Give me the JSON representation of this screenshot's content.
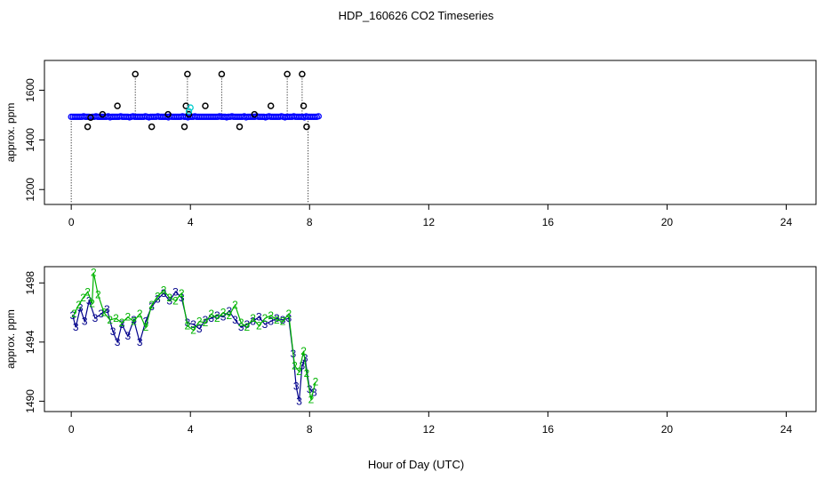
{
  "title": "HDP_160626  CO2 Timeseries",
  "xlabel": "Hour of Day (UTC)",
  "chart_data": [
    {
      "type": "scatter",
      "panel": "top",
      "ylabel": "approx. ppm",
      "xlim": [
        -0.9,
        25.0
      ],
      "ylim": [
        1140,
        1720
      ],
      "x_ticks": [
        0,
        4,
        8,
        12,
        16,
        20,
        24
      ],
      "y_ticks": [
        1200,
        1400,
        1600
      ],
      "baseline_series": {
        "x_range": [
          0.0,
          8.3
        ],
        "y": 1493,
        "color": "#0000ff",
        "marker": "circle"
      },
      "spikes": {
        "color": "#000000",
        "marker": "circle",
        "x": [
          0.0,
          0.55,
          0.65,
          1.05,
          1.55,
          2.15,
          2.7,
          3.25,
          3.8,
          3.85,
          3.9,
          3.95,
          4.5,
          5.05,
          5.65,
          6.15,
          6.7,
          7.25,
          7.75,
          7.8,
          7.9,
          7.95
        ],
        "y": [
          1150,
          1453,
          1490,
          1503,
          1537,
          1665,
          1453,
          1503,
          1453,
          1537,
          1665,
          1503,
          1537,
          1665,
          1453,
          1503,
          1537,
          1665,
          1665,
          1537,
          1453,
          1150
        ]
      },
      "drop_lines_x": [
        0.0,
        2.15,
        3.9,
        5.05,
        7.25,
        7.75,
        7.95
      ],
      "accent_points": {
        "color": "#00cccc",
        "x": [
          3.95,
          4.0
        ],
        "y": [
          1515,
          1530
        ]
      }
    },
    {
      "type": "line",
      "panel": "bottom",
      "ylabel": "approx. ppm",
      "xlim": [
        -0.9,
        25.0
      ],
      "ylim": [
        1489.3,
        1499.1
      ],
      "x_ticks": [
        0,
        4,
        8,
        12,
        16,
        20,
        24
      ],
      "y_ticks": [
        1490,
        1494,
        1498
      ],
      "series": [
        {
          "color": "#00008b",
          "marker_char": "3",
          "x": [
            0.05,
            0.15,
            0.3,
            0.45,
            0.6,
            0.8,
            1.0,
            1.2,
            1.4,
            1.55,
            1.7,
            1.9,
            2.1,
            2.3,
            2.5,
            2.7,
            2.9,
            3.1,
            3.3,
            3.5,
            3.7,
            3.9,
            4.1,
            4.3,
            4.5,
            4.7,
            4.9,
            5.1,
            5.3,
            5.5,
            5.7,
            5.9,
            6.1,
            6.3,
            6.5,
            6.7,
            6.9,
            7.1,
            7.3,
            7.45,
            7.55,
            7.65,
            7.75,
            7.85,
            8.0,
            8.15
          ],
          "y": [
            1495.8,
            1495.0,
            1496.3,
            1495.4,
            1496.8,
            1495.6,
            1495.9,
            1496.2,
            1494.7,
            1494.0,
            1495.2,
            1494.4,
            1495.5,
            1494.0,
            1495.4,
            1496.4,
            1496.9,
            1497.3,
            1496.8,
            1497.4,
            1497.0,
            1495.3,
            1495.2,
            1494.9,
            1495.5,
            1495.6,
            1495.8,
            1495.7,
            1496.1,
            1495.5,
            1495.0,
            1495.2,
            1495.4,
            1495.7,
            1495.2,
            1495.4,
            1495.6,
            1495.5,
            1495.6,
            1493.2,
            1491.0,
            1490.0,
            1492.4,
            1492.9,
            1490.8,
            1490.6
          ]
        },
        {
          "color": "#00b400",
          "marker_char": "2",
          "x": [
            0.1,
            0.25,
            0.4,
            0.55,
            0.7,
            0.75,
            0.9,
            1.1,
            1.3,
            1.5,
            1.7,
            1.9,
            2.1,
            2.3,
            2.5,
            2.7,
            2.9,
            3.1,
            3.3,
            3.5,
            3.7,
            3.9,
            4.1,
            4.3,
            4.5,
            4.7,
            4.9,
            5.1,
            5.3,
            5.5,
            5.7,
            5.9,
            6.1,
            6.3,
            6.5,
            6.7,
            6.9,
            7.1,
            7.3,
            7.5,
            7.65,
            7.8,
            7.9,
            8.05,
            8.2
          ],
          "y": [
            1495.9,
            1496.5,
            1497.0,
            1497.4,
            1496.6,
            1498.7,
            1497.2,
            1496.0,
            1495.5,
            1495.6,
            1495.3,
            1495.7,
            1495.4,
            1495.9,
            1495.0,
            1496.5,
            1497.1,
            1497.5,
            1497.0,
            1496.8,
            1497.3,
            1495.1,
            1494.8,
            1495.4,
            1495.3,
            1495.9,
            1495.6,
            1496.0,
            1495.8,
            1496.5,
            1495.3,
            1495.0,
            1495.6,
            1495.1,
            1495.6,
            1495.8,
            1495.5,
            1495.4,
            1495.9,
            1492.4,
            1492.0,
            1493.4,
            1491.9,
            1490.1,
            1491.3
          ]
        }
      ]
    }
  ]
}
